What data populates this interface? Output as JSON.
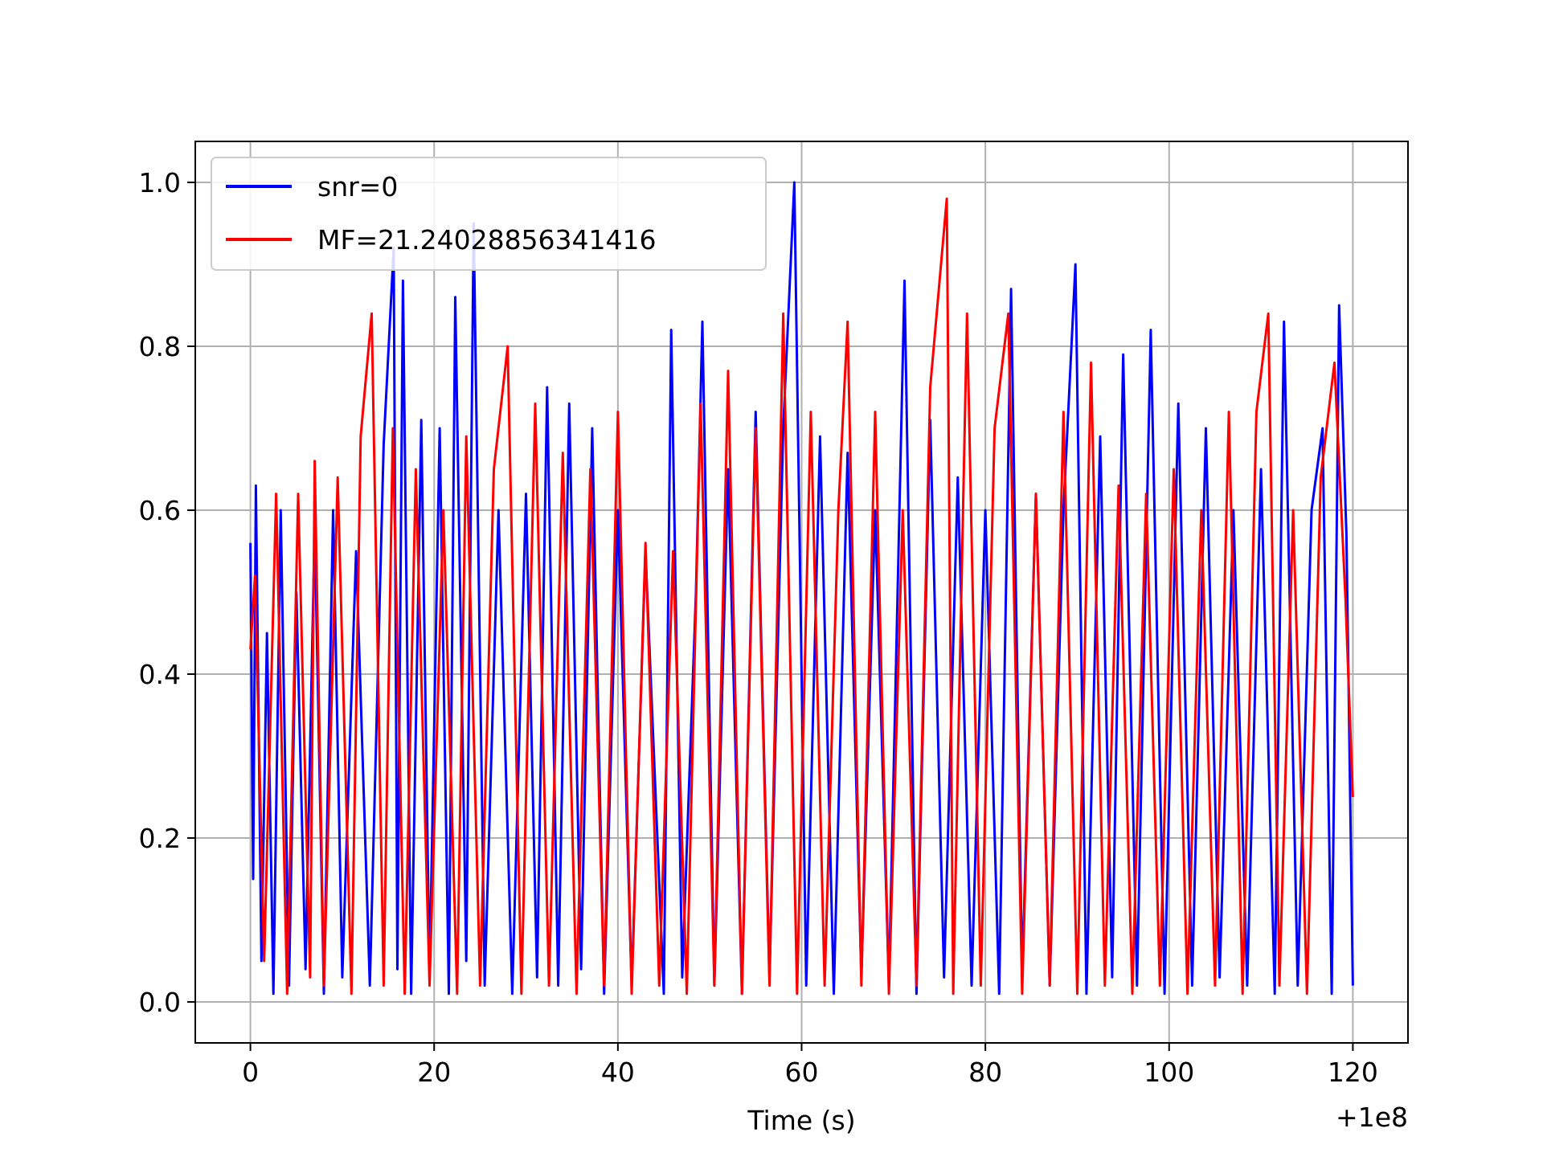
{
  "chart_data": {
    "type": "line",
    "title": "",
    "xlabel": "Time (s)",
    "ylabel": "",
    "x_offset_label": "+1e8",
    "xlim": [
      -6,
      126
    ],
    "ylim": [
      -0.05,
      1.05
    ],
    "xticks": [
      0,
      20,
      40,
      60,
      80,
      100,
      120
    ],
    "xtick_labels": [
      "0",
      "20",
      "40",
      "60",
      "80",
      "100",
      "120"
    ],
    "yticks": [
      0.0,
      0.2,
      0.4,
      0.6,
      0.8,
      1.0
    ],
    "ytick_labels": [
      "0.0",
      "0.2",
      "0.4",
      "0.6",
      "0.8",
      "1.0"
    ],
    "grid": true,
    "legend_position": "top-left",
    "series": [
      {
        "name": "snr=0",
        "color": "#0000ff",
        "x": [
          0,
          0.3,
          0.6,
          1.2,
          1.8,
          2.5,
          3.3,
          4.2,
          5.0,
          6.0,
          7.0,
          8.0,
          9.0,
          10.0,
          11.5,
          13.0,
          14.5,
          15.6,
          16.0,
          16.6,
          17.5,
          18.6,
          19.5,
          20.6,
          21.6,
          22.3,
          23.5,
          24.3,
          25.5,
          27.0,
          28.5,
          30.0,
          31.2,
          32.3,
          33.5,
          34.7,
          36.0,
          37.2,
          38.5,
          40.0,
          41.5,
          43.0,
          45.0,
          45.8,
          47.0,
          48.5,
          49.2,
          50.5,
          52.0,
          53.5,
          55.0,
          56.5,
          58.0,
          59.2,
          60.5,
          62.0,
          63.5,
          65.0,
          66.5,
          68.0,
          69.5,
          71.2,
          72.5,
          74.0,
          75.5,
          77.0,
          78.5,
          80.0,
          81.5,
          82.8,
          84.0,
          85.5,
          87.0,
          88.5,
          89.8,
          91.0,
          92.5,
          93.8,
          95.0,
          96.5,
          98.0,
          99.5,
          101.0,
          102.5,
          104.0,
          105.5,
          107.0,
          108.5,
          110.0,
          111.5,
          112.5,
          114.0,
          115.5,
          116.7,
          117.7,
          118.5,
          119.3,
          120.0
        ],
        "y": [
          0.56,
          0.15,
          0.63,
          0.05,
          0.45,
          0.01,
          0.6,
          0.02,
          0.5,
          0.04,
          0.58,
          0.01,
          0.6,
          0.03,
          0.55,
          0.02,
          0.68,
          0.92,
          0.04,
          0.88,
          0.01,
          0.71,
          0.03,
          0.7,
          0.01,
          0.86,
          0.05,
          0.95,
          0.02,
          0.6,
          0.01,
          0.62,
          0.03,
          0.75,
          0.02,
          0.73,
          0.04,
          0.7,
          0.01,
          0.6,
          0.02,
          0.55,
          0.01,
          0.82,
          0.03,
          0.5,
          0.83,
          0.02,
          0.65,
          0.01,
          0.72,
          0.03,
          0.7,
          1.0,
          0.02,
          0.69,
          0.01,
          0.67,
          0.03,
          0.6,
          0.02,
          0.88,
          0.01,
          0.71,
          0.03,
          0.64,
          0.02,
          0.6,
          0.01,
          0.87,
          0.03,
          0.62,
          0.02,
          0.6,
          0.9,
          0.01,
          0.69,
          0.03,
          0.79,
          0.02,
          0.82,
          0.01,
          0.73,
          0.02,
          0.7,
          0.03,
          0.6,
          0.02,
          0.65,
          0.01,
          0.83,
          0.02,
          0.6,
          0.7,
          0.01,
          0.85,
          0.57,
          0.02
        ]
      },
      {
        "name": "MF=21.24028856341416",
        "color": "#ff0000",
        "x": [
          0,
          0.5,
          1.5,
          2.8,
          4.0,
          5.2,
          6.5,
          7.0,
          8.0,
          9.5,
          11.0,
          12.0,
          13.2,
          14.5,
          15.5,
          16.8,
          18.0,
          19.5,
          21.0,
          22.5,
          23.5,
          25.0,
          26.5,
          28.0,
          29.5,
          31.0,
          32.5,
          34.0,
          35.5,
          37.0,
          38.5,
          40.0,
          41.5,
          43.0,
          44.5,
          46.0,
          47.5,
          49.0,
          50.5,
          52.0,
          53.5,
          55.0,
          56.5,
          58.0,
          59.5,
          61.0,
          62.5,
          64.0,
          65.0,
          66.5,
          68.0,
          69.5,
          71.0,
          72.5,
          74.0,
          75.8,
          76.5,
          78.0,
          79.5,
          81.0,
          82.5,
          84.0,
          85.5,
          87.0,
          88.5,
          90.0,
          91.5,
          93.0,
          94.5,
          96.0,
          97.5,
          99.0,
          100.5,
          102.0,
          103.5,
          105.0,
          106.5,
          108.0,
          109.5,
          110.8,
          112.0,
          113.5,
          115.0,
          116.5,
          118.0,
          119.2,
          120.0
        ],
        "y": [
          0.43,
          0.52,
          0.05,
          0.62,
          0.01,
          0.62,
          0.03,
          0.66,
          0.02,
          0.64,
          0.01,
          0.69,
          0.84,
          0.02,
          0.7,
          0.01,
          0.65,
          0.02,
          0.6,
          0.01,
          0.69,
          0.02,
          0.65,
          0.8,
          0.01,
          0.73,
          0.02,
          0.67,
          0.01,
          0.65,
          0.02,
          0.72,
          0.01,
          0.56,
          0.02,
          0.55,
          0.01,
          0.73,
          0.02,
          0.77,
          0.01,
          0.7,
          0.02,
          0.84,
          0.01,
          0.72,
          0.02,
          0.6,
          0.83,
          0.02,
          0.72,
          0.01,
          0.6,
          0.02,
          0.75,
          0.98,
          0.01,
          0.84,
          0.02,
          0.7,
          0.84,
          0.01,
          0.62,
          0.02,
          0.72,
          0.01,
          0.78,
          0.02,
          0.63,
          0.01,
          0.62,
          0.02,
          0.65,
          0.01,
          0.6,
          0.02,
          0.72,
          0.01,
          0.72,
          0.84,
          0.02,
          0.6,
          0.01,
          0.64,
          0.78,
          0.49,
          0.25
        ]
      }
    ]
  }
}
